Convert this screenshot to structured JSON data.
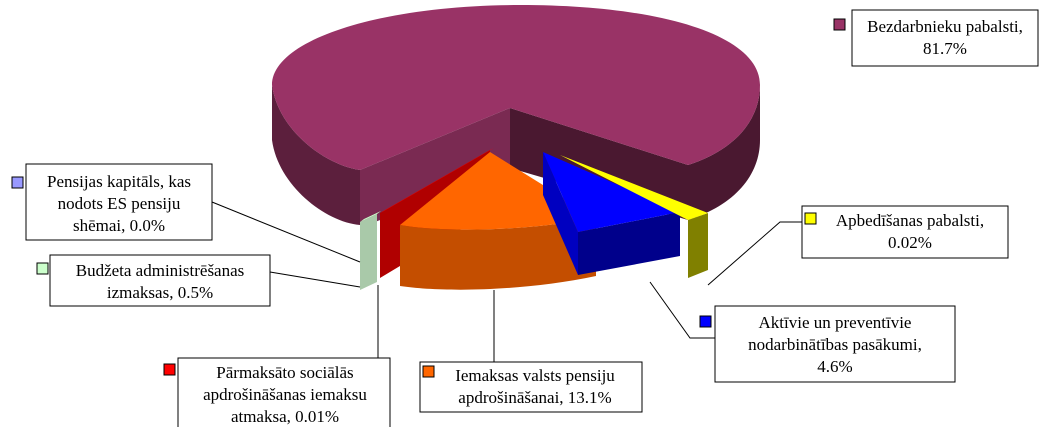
{
  "chart_data": {
    "type": "pie",
    "style": "3d-exploded",
    "title": "",
    "labels": [
      {
        "name": "Bezdarbnieku pabalsti,",
        "value_text": "81.7%",
        "value": 81.7,
        "color": "#993366"
      },
      {
        "name": "Apbedīšanas pabalsti,",
        "value_text": "0.02%",
        "value": 0.02,
        "color": "#ffff00"
      },
      {
        "name": "Aktīvie un preventīvie nodarbinātības pasākumi,",
        "value_text": "4.6%",
        "value": 4.6,
        "color": "#0000ff"
      },
      {
        "name": "Iemaksas valsts pensiju apdrošināšanai,",
        "value_text": "13.1%",
        "value": 13.1,
        "color": "#ff6600"
      },
      {
        "name": "Pārmaksāto sociālās apdrošināšanas iemaksu atmaksa,",
        "value_text": "0.01%",
        "value": 0.01,
        "color": "#ff0000"
      },
      {
        "name": "Budžeta administrēšanas izmaksas,",
        "value_text": "0.5%",
        "value": 0.5,
        "color": "#ccffcc"
      },
      {
        "name": "Pensijas kapitāls, kas nodots ES pensiju shēmai,",
        "value_text": "0.0%",
        "value": 0.0,
        "color": "#9999ff"
      }
    ],
    "legend": "callout-labels"
  }
}
